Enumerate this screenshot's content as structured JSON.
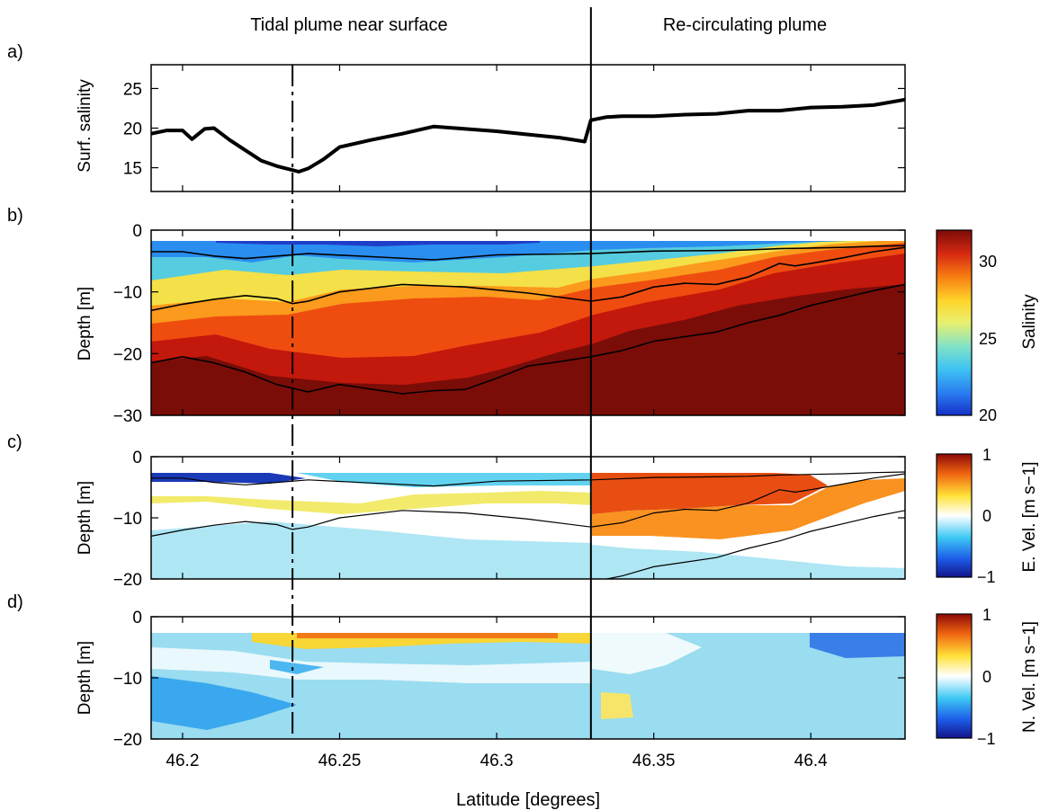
{
  "figure": {
    "region_left": "Tidal plume near surface",
    "region_right": "Re-circulating plume",
    "xlabel": "Latitude [degrees]",
    "x_ticks": [
      "46.2",
      "46.25",
      "46.3",
      "46.35",
      "46.4"
    ],
    "xlim": [
      46.19,
      46.43
    ],
    "dashed_line_lat": 46.235,
    "solid_line_lat": 46.33
  },
  "chart_data": [
    {
      "id": "a",
      "panel_label": "a)",
      "type": "line",
      "ylabel": "Surf. salinity",
      "ylim": [
        12,
        28
      ],
      "y_ticks": [
        "15",
        "20",
        "25"
      ],
      "series": [
        {
          "x": [
            46.19,
            46.195,
            46.2,
            46.203,
            46.207,
            46.21,
            46.215,
            46.22,
            46.225,
            46.23,
            46.235,
            46.237,
            46.24,
            46.245,
            46.25,
            46.26,
            46.27,
            46.28,
            46.29,
            46.3,
            46.31,
            46.32,
            46.328,
            46.33,
            46.335,
            46.34,
            46.35,
            46.36,
            46.37,
            46.38,
            46.39,
            46.4,
            46.41,
            46.42,
            46.43
          ],
          "y": [
            19.3,
            19.7,
            19.7,
            18.6,
            19.9,
            20.0,
            18.5,
            17.2,
            15.9,
            15.2,
            14.7,
            14.5,
            14.9,
            16.1,
            17.6,
            18.5,
            19.3,
            20.2,
            19.9,
            19.6,
            19.2,
            18.8,
            18.3,
            21.0,
            21.4,
            21.5,
            21.5,
            21.7,
            21.8,
            22.2,
            22.2,
            22.6,
            22.7,
            22.9,
            23.6
          ]
        }
      ]
    },
    {
      "id": "b",
      "panel_label": "b)",
      "type": "heatmap",
      "ylabel": "Depth [m]",
      "ylim": [
        -30,
        0
      ],
      "y_ticks": [
        "0",
        "−10",
        "−20",
        "−30"
      ],
      "colorbar": {
        "label": "Salinity",
        "range": [
          20,
          32
        ],
        "ticks": [
          "20",
          "25",
          "30"
        ]
      },
      "field": "salinity",
      "contours": [
        {
          "x": [
            46.19,
            46.2,
            46.21,
            46.22,
            46.23,
            46.24,
            46.26,
            46.28,
            46.3,
            46.33,
            46.35,
            46.37,
            46.38,
            46.39,
            46.4,
            46.41,
            46.42,
            46.43
          ],
          "y": [
            -3.5,
            -3.5,
            -4.2,
            -4.6,
            -4.2,
            -3.8,
            -4.3,
            -4.8,
            -4.0,
            -3.8,
            -3.4,
            -3.3,
            -3.2,
            -3.0,
            -2.9,
            -2.8,
            -2.6,
            -2.5
          ]
        },
        {
          "x": [
            46.19,
            46.2,
            46.21,
            46.22,
            46.23,
            46.235,
            46.24,
            46.25,
            46.27,
            46.29,
            46.31,
            46.33,
            46.34,
            46.35,
            46.36,
            46.37,
            46.38,
            46.385,
            46.39,
            46.395,
            46.4,
            46.41,
            46.42,
            46.43
          ],
          "y": [
            -13,
            -12,
            -11.2,
            -10.6,
            -11.1,
            -11.9,
            -11.5,
            -10.0,
            -8.8,
            -9.2,
            -10.2,
            -11.5,
            -10.8,
            -9.2,
            -8.6,
            -8.8,
            -7.6,
            -6.5,
            -5.4,
            -5.8,
            -5.4,
            -4.5,
            -3.5,
            -2.8
          ]
        },
        {
          "x": [
            46.19,
            46.2,
            46.21,
            46.22,
            46.23,
            46.24,
            46.25,
            46.27,
            46.28,
            46.29,
            46.3,
            46.31,
            46.32,
            46.33,
            46.34,
            46.35,
            46.37,
            46.38,
            46.39,
            46.4,
            46.41,
            46.42,
            46.43
          ],
          "y": [
            -21.5,
            -20.5,
            -21.5,
            -23.0,
            -25.0,
            -26.2,
            -25.0,
            -26.5,
            -26.0,
            -25.8,
            -24.0,
            -22.0,
            -21.3,
            -20.5,
            -19.5,
            -18.0,
            -16.5,
            -15.0,
            -13.8,
            -12.2,
            -11.0,
            -9.8,
            -8.8
          ]
        }
      ]
    },
    {
      "id": "c",
      "panel_label": "c)",
      "type": "heatmap",
      "ylabel": "Depth [m]",
      "ylim": [
        -20,
        0
      ],
      "y_ticks": [
        "0",
        "−10",
        "−20"
      ],
      "colorbar": {
        "label": "E. Vel. [m s−1]",
        "range": [
          -1,
          1
        ],
        "ticks": [
          "1",
          "0",
          "−1"
        ]
      },
      "field": "east_velocity"
    },
    {
      "id": "d",
      "panel_label": "d)",
      "type": "heatmap",
      "ylabel": "Depth [m]",
      "ylim": [
        -20,
        0
      ],
      "y_ticks": [
        "0",
        "−10",
        "−20"
      ],
      "colorbar": {
        "label": "N. Vel. [m s−1]",
        "range": [
          -1,
          1
        ],
        "ticks": [
          "1",
          "0",
          "−1"
        ]
      },
      "field": "north_velocity"
    }
  ]
}
